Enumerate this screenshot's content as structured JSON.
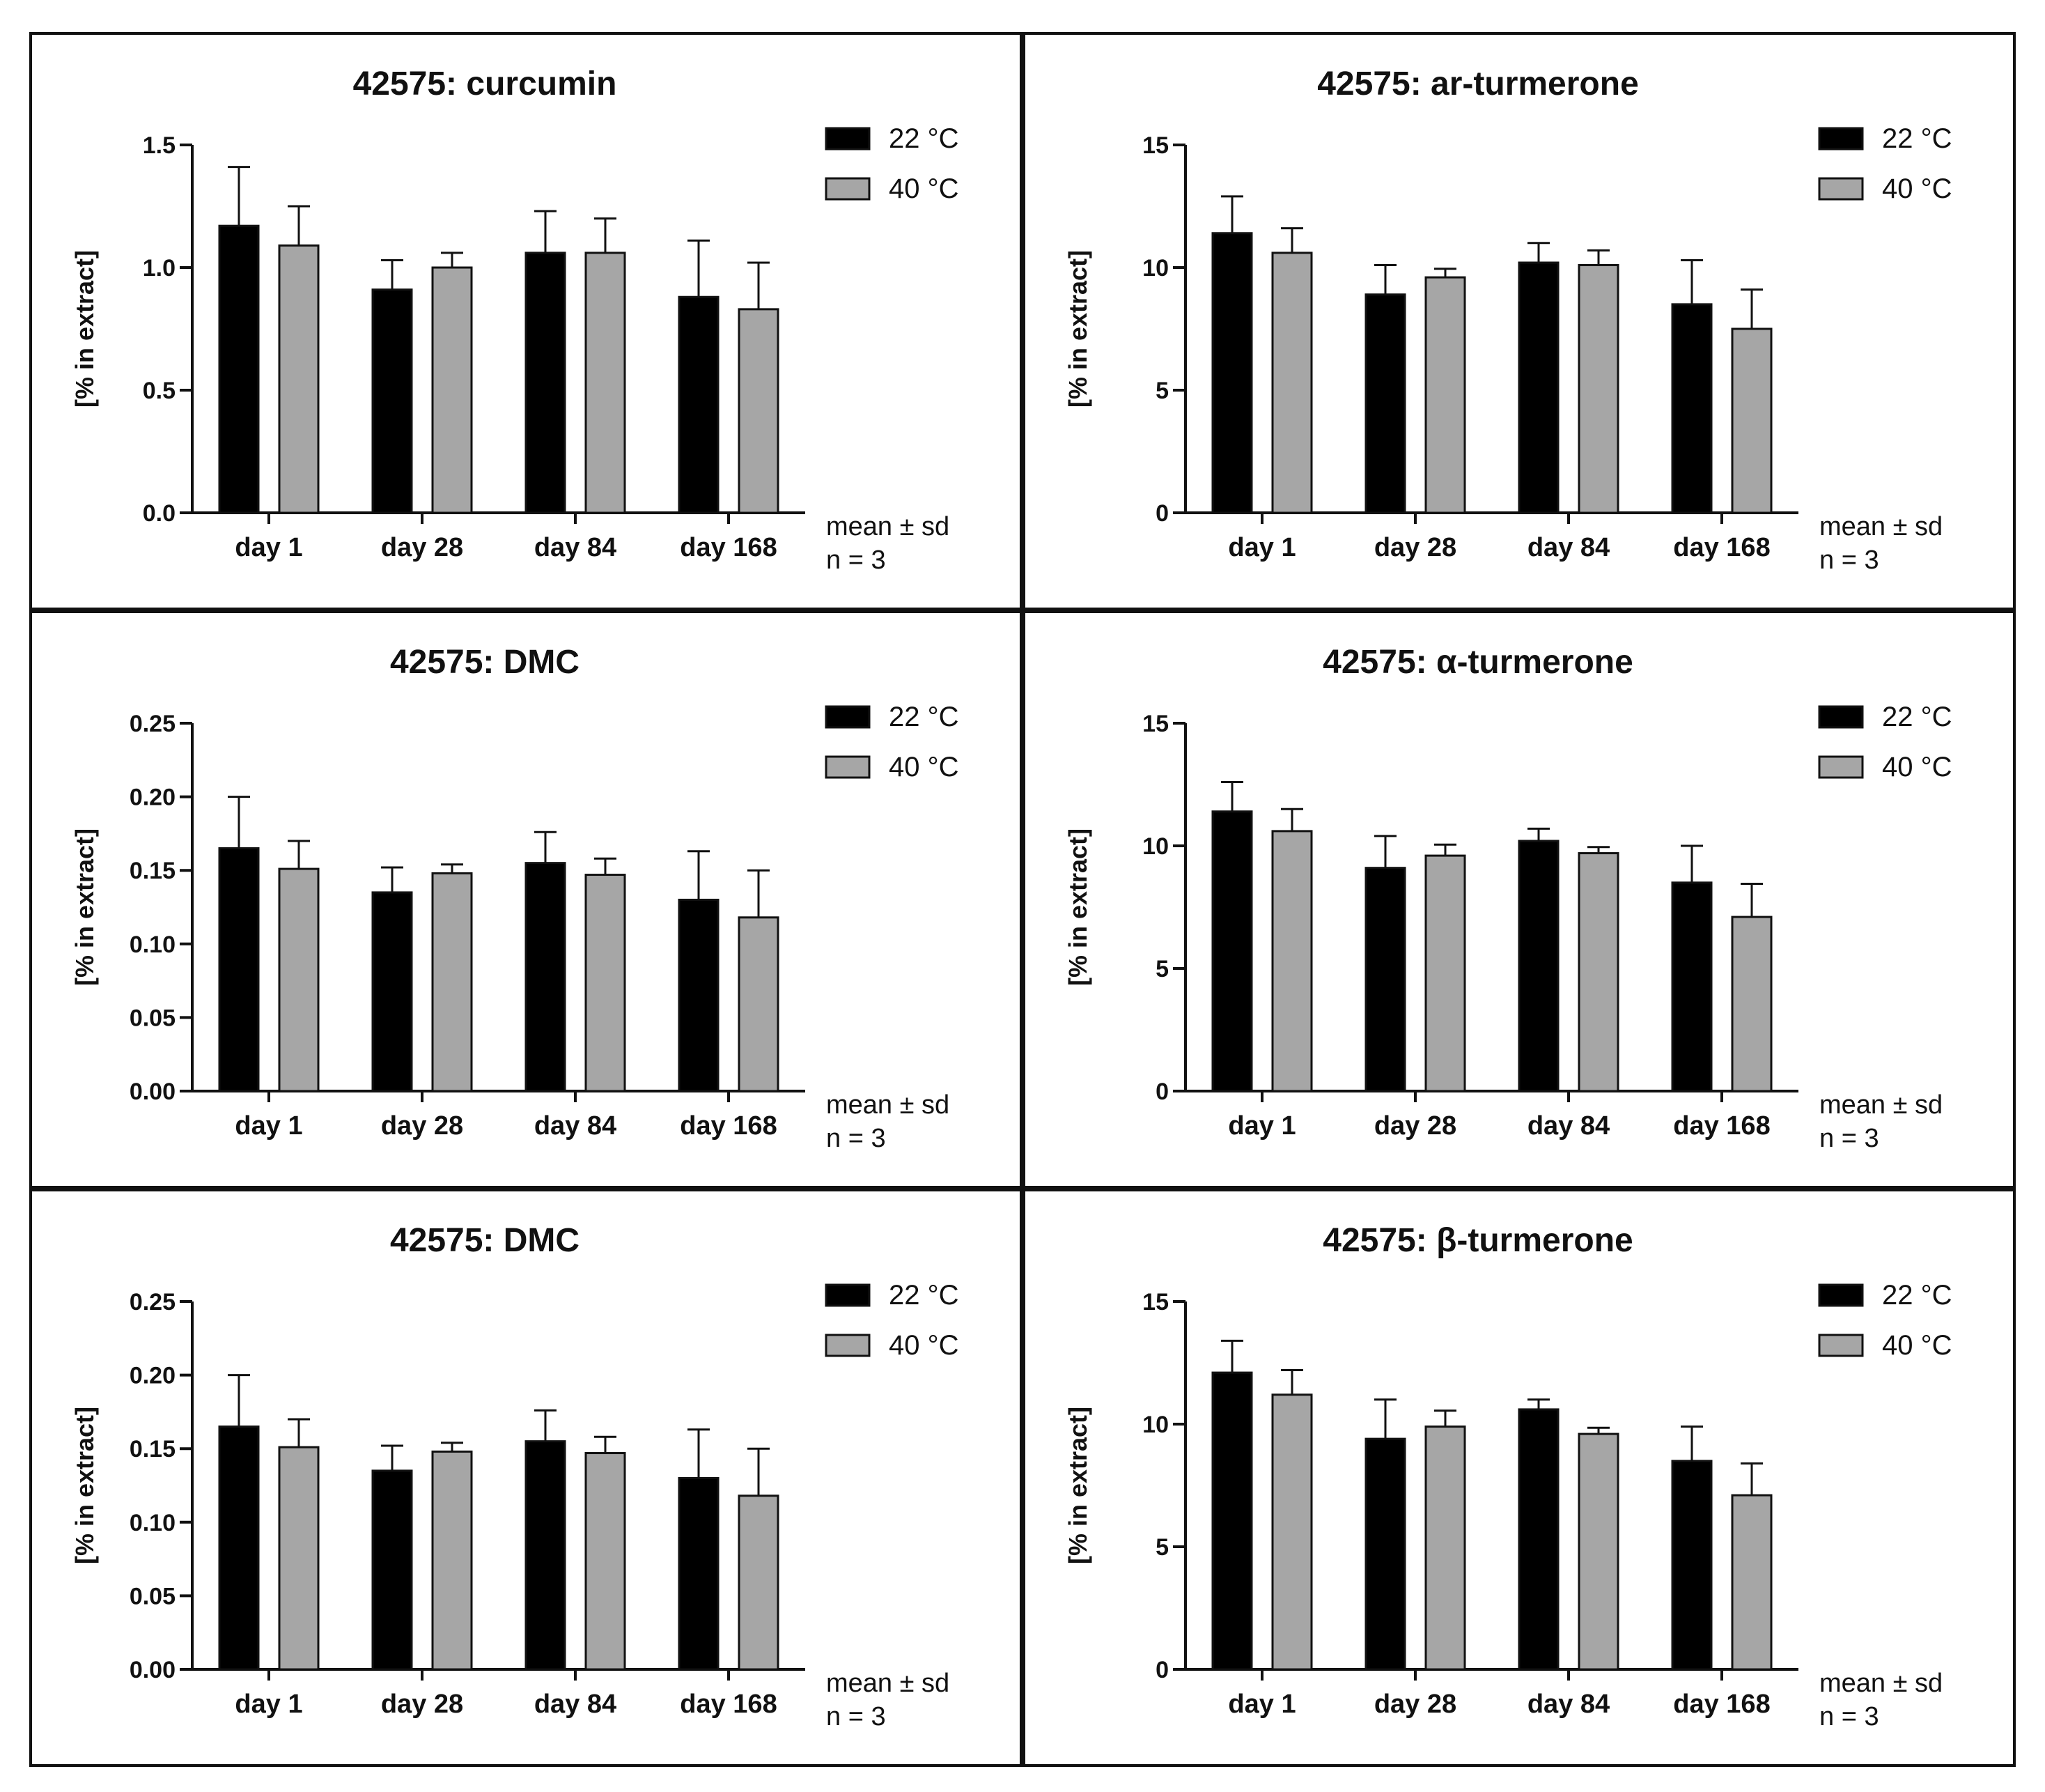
{
  "chart_data": [
    {
      "type": "bar",
      "title": "42575: curcumin",
      "ylabel": "[% in extract]",
      "xlabel": "",
      "categories": [
        "day 1",
        "day 28",
        "day 84",
        "day 168"
      ],
      "ylim": [
        0,
        1.5
      ],
      "yticks": [
        "0.0",
        "0.5",
        "1.0",
        "1.5"
      ],
      "series": [
        {
          "name": "22 °C",
          "color": "#000000",
          "values": [
            1.17,
            0.91,
            1.06,
            0.88
          ],
          "sd": [
            0.24,
            0.12,
            0.17,
            0.23
          ]
        },
        {
          "name": "40 °C",
          "color": "#a6a6a6",
          "values": [
            1.09,
            1.0,
            1.06,
            0.83
          ],
          "sd": [
            0.16,
            0.06,
            0.14,
            0.19
          ]
        }
      ],
      "legend_position": "top-right",
      "notes": [
        "mean ± sd",
        "n = 3"
      ]
    },
    {
      "type": "bar",
      "title": "42575: ar-turmerone",
      "ylabel": "[% in extract]",
      "xlabel": "",
      "categories": [
        "day 1",
        "day 28",
        "day 84",
        "day 168"
      ],
      "ylim": [
        0,
        15
      ],
      "yticks": [
        "0",
        "5",
        "10",
        "15"
      ],
      "series": [
        {
          "name": "22 °C",
          "color": "#000000",
          "values": [
            11.4,
            8.9,
            10.2,
            8.5
          ],
          "sd": [
            1.5,
            1.2,
            0.8,
            1.8
          ]
        },
        {
          "name": "40 °C",
          "color": "#a6a6a6",
          "values": [
            10.6,
            9.6,
            10.1,
            7.5
          ],
          "sd": [
            1.0,
            0.35,
            0.6,
            1.6
          ]
        }
      ],
      "legend_position": "top-right",
      "notes": [
        "mean ± sd",
        "n = 3"
      ]
    },
    {
      "type": "bar",
      "title": "42575: DMC",
      "ylabel": "[% in extract]",
      "xlabel": "",
      "categories": [
        "day 1",
        "day 28",
        "day 84",
        "day 168"
      ],
      "ylim": [
        0,
        0.25
      ],
      "yticks": [
        "0.00",
        "0.05",
        "0.10",
        "0.15",
        "0.20",
        "0.25"
      ],
      "series": [
        {
          "name": "22 °C",
          "color": "#000000",
          "values": [
            0.165,
            0.135,
            0.155,
            0.13
          ],
          "sd": [
            0.035,
            0.017,
            0.021,
            0.033
          ]
        },
        {
          "name": "40 °C",
          "color": "#a6a6a6",
          "values": [
            0.151,
            0.148,
            0.147,
            0.118
          ],
          "sd": [
            0.019,
            0.006,
            0.011,
            0.032
          ]
        }
      ],
      "legend_position": "top-right",
      "notes": [
        "mean ± sd",
        "n = 3"
      ]
    },
    {
      "type": "bar",
      "title": "42575: α-turmerone",
      "ylabel": "[% in extract]",
      "xlabel": "",
      "categories": [
        "day 1",
        "day 28",
        "day 84",
        "day 168"
      ],
      "ylim": [
        0,
        15
      ],
      "yticks": [
        "0",
        "5",
        "10",
        "15"
      ],
      "series": [
        {
          "name": "22 °C",
          "color": "#000000",
          "values": [
            11.4,
            9.1,
            10.2,
            8.5
          ],
          "sd": [
            1.2,
            1.3,
            0.5,
            1.5
          ]
        },
        {
          "name": "40 °C",
          "color": "#a6a6a6",
          "values": [
            10.6,
            9.6,
            9.7,
            7.1
          ],
          "sd": [
            0.9,
            0.45,
            0.25,
            1.35
          ]
        }
      ],
      "legend_position": "top-right",
      "notes": [
        "mean ± sd",
        "n = 3"
      ]
    },
    {
      "type": "bar",
      "title": "42575: DMC",
      "ylabel": "[% in extract]",
      "xlabel": "",
      "categories": [
        "day 1",
        "day 28",
        "day 84",
        "day 168"
      ],
      "ylim": [
        0,
        0.25
      ],
      "yticks": [
        "0.00",
        "0.05",
        "0.10",
        "0.15",
        "0.20",
        "0.25"
      ],
      "series": [
        {
          "name": "22 °C",
          "color": "#000000",
          "values": [
            0.165,
            0.135,
            0.155,
            0.13
          ],
          "sd": [
            0.035,
            0.017,
            0.021,
            0.033
          ]
        },
        {
          "name": "40 °C",
          "color": "#a6a6a6",
          "values": [
            0.151,
            0.148,
            0.147,
            0.118
          ],
          "sd": [
            0.019,
            0.006,
            0.011,
            0.032
          ]
        }
      ],
      "legend_position": "top-right",
      "notes": [
        "mean ± sd",
        "n = 3"
      ]
    },
    {
      "type": "bar",
      "title": "42575: β-turmerone",
      "ylabel": "[% in extract]",
      "xlabel": "",
      "categories": [
        "day 1",
        "day 28",
        "day 84",
        "day 168"
      ],
      "ylim": [
        0,
        15
      ],
      "yticks": [
        "0",
        "5",
        "10",
        "15"
      ],
      "series": [
        {
          "name": "22 °C",
          "color": "#000000",
          "values": [
            12.1,
            9.4,
            10.6,
            8.5
          ],
          "sd": [
            1.3,
            1.6,
            0.4,
            1.4
          ]
        },
        {
          "name": "40 °C",
          "color": "#a6a6a6",
          "values": [
            11.2,
            9.9,
            9.6,
            7.1
          ],
          "sd": [
            1.0,
            0.65,
            0.25,
            1.3
          ]
        }
      ],
      "legend_position": "top-right",
      "notes": [
        "mean ± sd",
        "n = 3"
      ]
    }
  ]
}
